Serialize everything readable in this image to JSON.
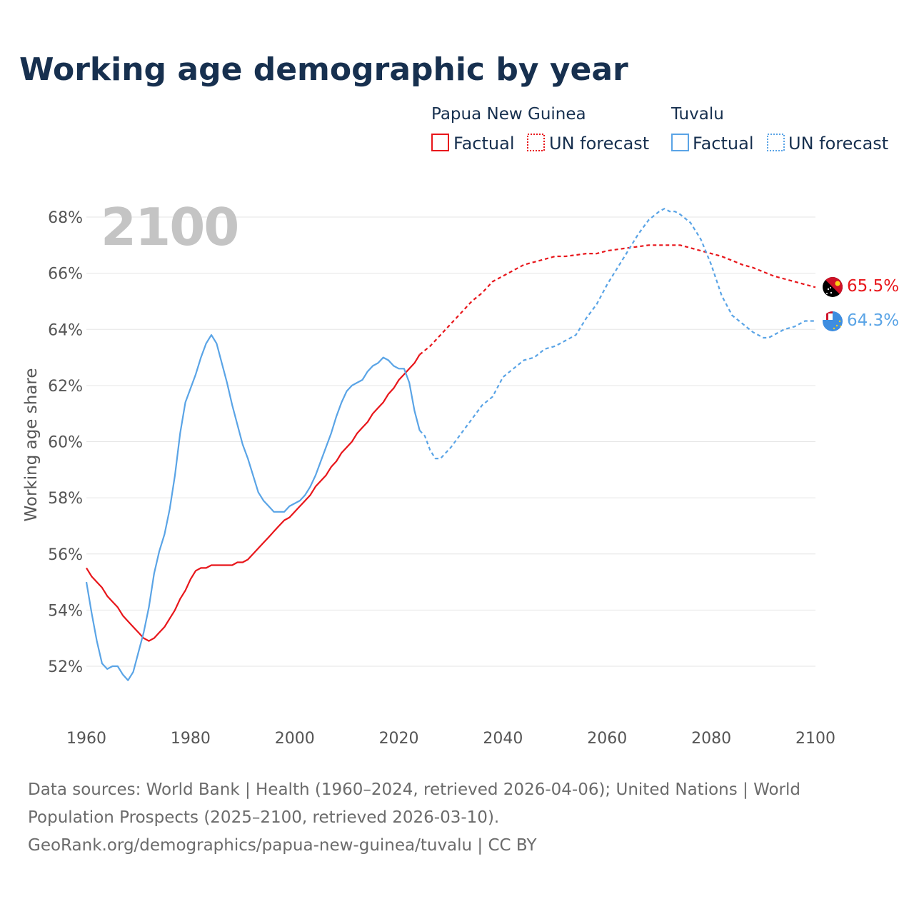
{
  "chart_data": {
    "type": "line",
    "title": "Working age demographic by year",
    "ylabel": "Working age share",
    "xlabel": "",
    "year_label": "2100",
    "xlim": [
      1960,
      2100
    ],
    "ylim": [
      50.5,
      69
    ],
    "x_ticks": [
      1960,
      1980,
      2000,
      2020,
      2040,
      2060,
      2080,
      2100
    ],
    "x_tick_labels": [
      "1960",
      "1980",
      "2000",
      "2020",
      "2040",
      "2060",
      "2080",
      "2100"
    ],
    "y_ticks": [
      52,
      54,
      56,
      58,
      60,
      62,
      64,
      66,
      68
    ],
    "y_tick_labels": [
      "52%",
      "54%",
      "56%",
      "58%",
      "60%",
      "62%",
      "64%",
      "66%",
      "68%"
    ],
    "legend": {
      "groups": [
        {
          "name": "Papua New Guinea",
          "factual_label": "Factual",
          "forecast_label": "UN forecast",
          "color": "#e8161b"
        },
        {
          "name": "Tuvalu",
          "factual_label": "Factual",
          "forecast_label": "UN forecast",
          "color": "#5aa4e6"
        }
      ]
    },
    "series": [
      {
        "name": "Papua New Guinea",
        "color": "#e8161b",
        "end_label": "65.5%",
        "factual_x": [
          1960,
          1961,
          1962,
          1963,
          1964,
          1965,
          1966,
          1967,
          1968,
          1969,
          1970,
          1971,
          1972,
          1973,
          1974,
          1975,
          1976,
          1977,
          1978,
          1979,
          1980,
          1981,
          1982,
          1983,
          1984,
          1985,
          1986,
          1987,
          1988,
          1989,
          1990,
          1991,
          1992,
          1993,
          1994,
          1995,
          1996,
          1997,
          1998,
          1999,
          2000,
          2001,
          2002,
          2003,
          2004,
          2005,
          2006,
          2007,
          2008,
          2009,
          2010,
          2011,
          2012,
          2013,
          2014,
          2015,
          2016,
          2017,
          2018,
          2019,
          2020,
          2021,
          2022,
          2023,
          2024
        ],
        "factual_y": [
          55.5,
          55.2,
          55.0,
          54.8,
          54.5,
          54.3,
          54.1,
          53.8,
          53.6,
          53.4,
          53.2,
          53.0,
          52.9,
          53.0,
          53.2,
          53.4,
          53.7,
          54.0,
          54.4,
          54.7,
          55.1,
          55.4,
          55.5,
          55.5,
          55.6,
          55.6,
          55.6,
          55.6,
          55.6,
          55.7,
          55.7,
          55.8,
          56.0,
          56.2,
          56.4,
          56.6,
          56.8,
          57.0,
          57.2,
          57.3,
          57.5,
          57.7,
          57.9,
          58.1,
          58.4,
          58.6,
          58.8,
          59.1,
          59.3,
          59.6,
          59.8,
          60.0,
          60.3,
          60.5,
          60.7,
          61.0,
          61.2,
          61.4,
          61.7,
          61.9,
          62.2,
          62.4,
          62.6,
          62.8,
          63.1
        ],
        "forecast_x": [
          2024,
          2026,
          2028,
          2030,
          2032,
          2034,
          2036,
          2038,
          2040,
          2042,
          2044,
          2046,
          2048,
          2050,
          2052,
          2054,
          2056,
          2058,
          2060,
          2062,
          2064,
          2066,
          2068,
          2070,
          2072,
          2074,
          2076,
          2078,
          2080,
          2082,
          2084,
          2086,
          2088,
          2090,
          2092,
          2094,
          2096,
          2098,
          2100
        ],
        "forecast_y": [
          63.1,
          63.4,
          63.8,
          64.2,
          64.6,
          65.0,
          65.3,
          65.7,
          65.9,
          66.1,
          66.3,
          66.4,
          66.5,
          66.6,
          66.6,
          66.65,
          66.7,
          66.7,
          66.8,
          66.85,
          66.9,
          66.95,
          67.0,
          67.0,
          67.0,
          67.0,
          66.9,
          66.8,
          66.7,
          66.6,
          66.45,
          66.3,
          66.2,
          66.05,
          65.9,
          65.8,
          65.7,
          65.6,
          65.5
        ]
      },
      {
        "name": "Tuvalu",
        "color": "#5aa4e6",
        "end_label": "64.3%",
        "factual_x": [
          1960,
          1961,
          1962,
          1963,
          1964,
          1965,
          1966,
          1967,
          1968,
          1969,
          1970,
          1971,
          1972,
          1973,
          1974,
          1975,
          1976,
          1977,
          1978,
          1979,
          1980,
          1981,
          1982,
          1983,
          1984,
          1985,
          1986,
          1987,
          1988,
          1989,
          1990,
          1991,
          1992,
          1993,
          1994,
          1995,
          1996,
          1997,
          1998,
          1999,
          2000,
          2001,
          2002,
          2003,
          2004,
          2005,
          2006,
          2007,
          2008,
          2009,
          2010,
          2011,
          2012,
          2013,
          2014,
          2015,
          2016,
          2017,
          2018,
          2019,
          2020,
          2021,
          2022,
          2023,
          2024
        ],
        "factual_y": [
          55.0,
          53.9,
          52.9,
          52.1,
          51.9,
          52.0,
          52.0,
          51.7,
          51.5,
          51.8,
          52.5,
          53.2,
          54.1,
          55.3,
          56.1,
          56.7,
          57.6,
          58.8,
          60.3,
          61.4,
          61.9,
          62.4,
          63.0,
          63.5,
          63.8,
          63.5,
          62.8,
          62.1,
          61.3,
          60.6,
          59.9,
          59.4,
          58.8,
          58.2,
          57.9,
          57.7,
          57.5,
          57.5,
          57.5,
          57.7,
          57.8,
          57.9,
          58.1,
          58.4,
          58.8,
          59.3,
          59.8,
          60.3,
          60.9,
          61.4,
          61.8,
          62.0,
          62.1,
          62.2,
          62.5,
          62.7,
          62.8,
          63.0,
          62.9,
          62.7,
          62.6,
          62.6,
          62.1,
          61.1,
          60.4
        ],
        "forecast_x": [
          2024,
          2025,
          2026,
          2027,
          2028,
          2029,
          2030,
          2032,
          2034,
          2036,
          2038,
          2040,
          2042,
          2044,
          2046,
          2048,
          2050,
          2052,
          2054,
          2056,
          2058,
          2060,
          2062,
          2064,
          2066,
          2068,
          2070,
          2071,
          2072,
          2073,
          2074,
          2076,
          2078,
          2080,
          2082,
          2084,
          2086,
          2088,
          2090,
          2091,
          2092,
          2094,
          2096,
          2098,
          2100
        ],
        "forecast_y": [
          60.4,
          60.2,
          59.7,
          59.4,
          59.4,
          59.6,
          59.8,
          60.3,
          60.8,
          61.3,
          61.6,
          62.3,
          62.6,
          62.9,
          63.0,
          63.3,
          63.4,
          63.6,
          63.8,
          64.4,
          64.9,
          65.6,
          66.2,
          66.8,
          67.4,
          67.9,
          68.2,
          68.3,
          68.2,
          68.2,
          68.1,
          67.8,
          67.2,
          66.3,
          65.2,
          64.5,
          64.2,
          63.9,
          63.7,
          63.7,
          63.8,
          64.0,
          64.1,
          64.3,
          64.3
        ]
      }
    ]
  },
  "sources": {
    "line1": "Data sources: World Bank | Health (1960–2024, retrieved 2026-04-06); United Nations | World",
    "line2": "Population Prospects (2025–2100, retrieved 2026-03-10).",
    "line3": "GeoRank.org/demographics/papua-new-guinea/tuvalu | CC BY"
  }
}
